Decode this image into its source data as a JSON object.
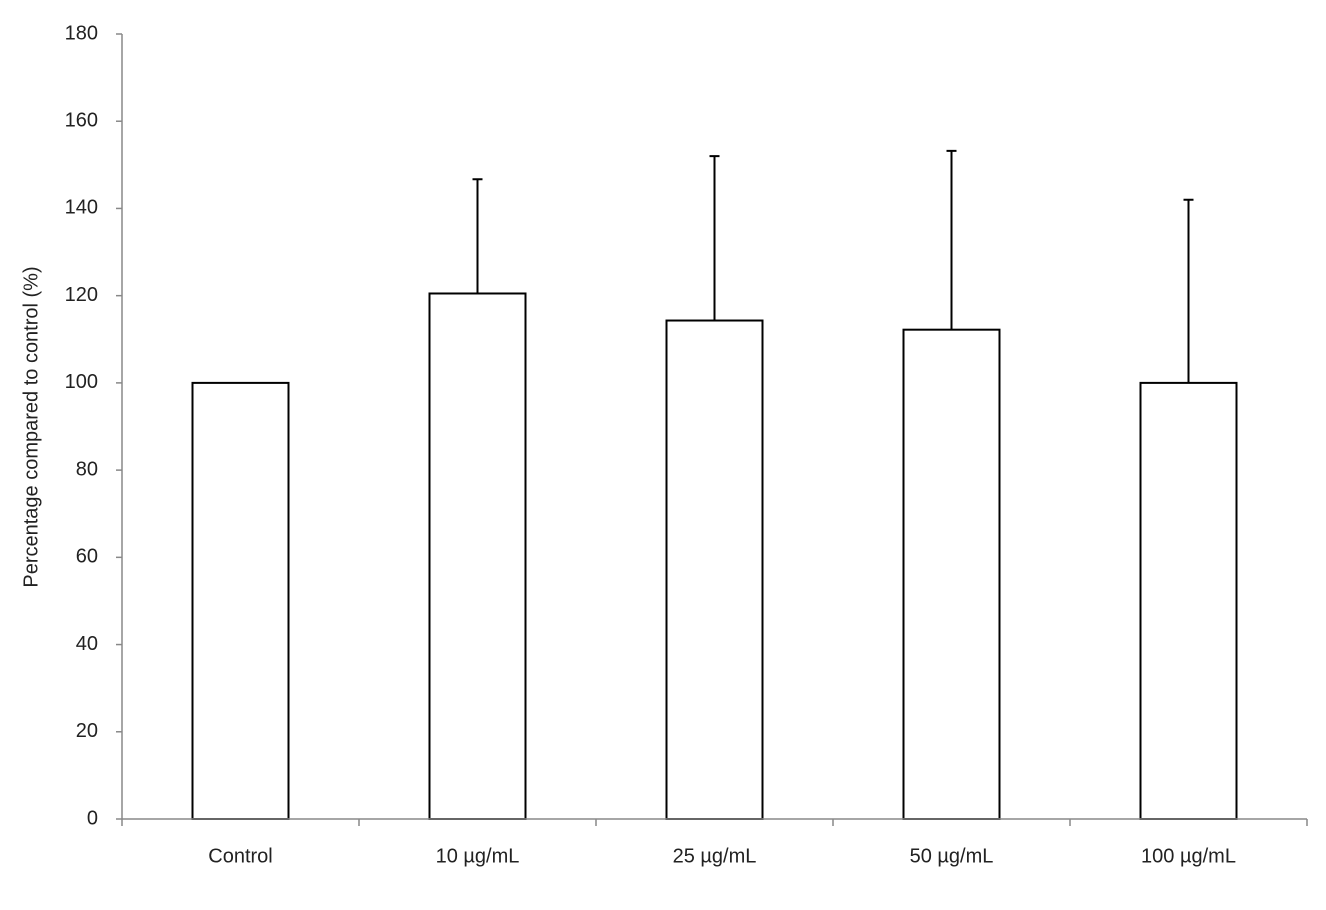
{
  "chart_data": {
    "type": "bar",
    "y_label": "Percentage compared to control (%)",
    "categories": [
      "Control",
      "10 µg/mL",
      "25 µg/mL",
      "50 µg/mL",
      "100 µg/mL"
    ],
    "values": [
      100,
      120.5,
      114.3,
      112.2,
      100
    ],
    "errors": [
      null,
      26.2,
      37.7,
      41,
      42
    ],
    "color": "#ffffff",
    "ylim": [
      0,
      180
    ],
    "yticks": [
      0,
      20,
      40,
      60,
      80,
      100,
      120,
      140,
      160,
      180
    ]
  }
}
